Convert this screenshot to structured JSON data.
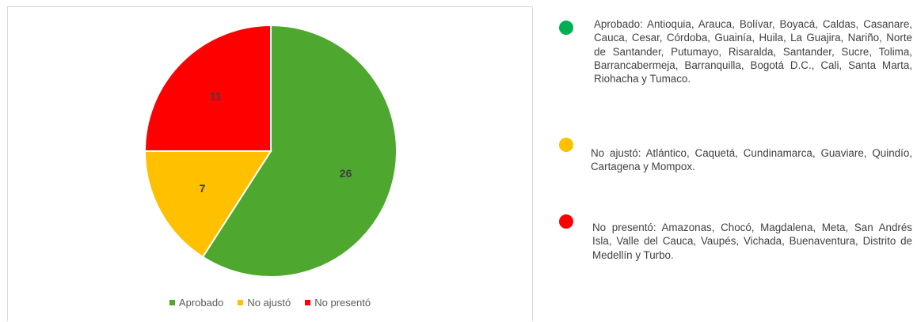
{
  "chart_data": {
    "type": "pie",
    "categories": [
      "Aprobado",
      "No ajustó",
      "No presentó"
    ],
    "values": [
      26,
      7,
      11
    ],
    "colors": [
      "#4ea72e",
      "#ffc000",
      "#ff0000"
    ],
    "data_labels": [
      "26",
      "7",
      "11"
    ],
    "start_angle_deg": 0,
    "direction": "clockwise",
    "legend_position": "bottom",
    "title": ""
  },
  "legend": [
    {
      "label": "Aprobado",
      "color": "#4ea72e"
    },
    {
      "label": "No ajustó",
      "color": "#ffc000"
    },
    {
      "label": "No presentó",
      "color": "#ff0000"
    }
  ],
  "notes": [
    {
      "color": "#00b050",
      "text": "Aprobado: Antioquia, Arauca, Bolívar, Boyacá, Caldas, Casanare, Cauca, Cesar, Córdoba, Guainía, Huila, La Guajira, Nariño, Norte de Santander, Putumayo, Risaralda, Santander, Sucre, Tolima, Barrancabermeja, Barranquilla, Bogotá D.C., Cali, Santa Marta, Riohacha y Tumaco."
    },
    {
      "color": "#ffc000",
      "text": "No ajustó: Atlántico, Caquetá, Cundinamarca, Guaviare, Quindío, Cartagena y Mompox."
    },
    {
      "color": "#ff0000",
      "text": "No presentó: Amazonas, Chocó, Magdalena, Meta, San Andrés Isla, Valle del Cauca, Vaupés, Vichada, Buenaventura, Distrito de Medellín y Turbo."
    }
  ]
}
